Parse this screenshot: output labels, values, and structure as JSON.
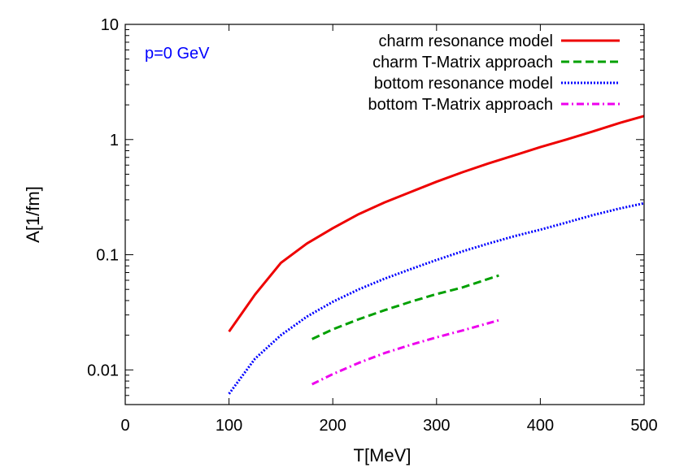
{
  "chart_data": {
    "type": "line",
    "title": "",
    "xlabel": "T[MeV]",
    "ylabel": "A[1/fm]",
    "xlim": [
      0,
      500
    ],
    "ylim": [
      0.005,
      10
    ],
    "yscale": "log",
    "grid": false,
    "legend_position": "top-right",
    "x_ticks": [
      0,
      100,
      200,
      300,
      400,
      500
    ],
    "x_tick_labels": [
      "0",
      "100",
      "200",
      "300",
      "400",
      "500"
    ],
    "y_ticks": [
      0.01,
      0.1,
      1,
      10
    ],
    "y_tick_labels": [
      "0.01",
      "0.1",
      "1",
      "10"
    ],
    "annotation": {
      "text": "p=0 GeV",
      "color": "#0000ff"
    },
    "series": [
      {
        "name": "charm resonance model",
        "color": "#ee0000",
        "style": "solid",
        "x": [
          100,
          125,
          150,
          175,
          200,
          225,
          250,
          275,
          300,
          325,
          350,
          375,
          400,
          425,
          450,
          475,
          500
        ],
        "y": [
          0.0215,
          0.045,
          0.085,
          0.125,
          0.17,
          0.225,
          0.285,
          0.35,
          0.43,
          0.52,
          0.62,
          0.73,
          0.86,
          1.0,
          1.17,
          1.38,
          1.6
        ]
      },
      {
        "name": "charm T-Matrix approach",
        "color": "#00a000",
        "style": "dashed",
        "x": [
          180,
          200,
          225,
          250,
          275,
          300,
          325,
          360
        ],
        "y": [
          0.0185,
          0.0225,
          0.0275,
          0.033,
          0.039,
          0.0455,
          0.052,
          0.066
        ]
      },
      {
        "name": "bottom resonance model",
        "color": "#0000ff",
        "style": "dotted",
        "x": [
          100,
          125,
          150,
          175,
          200,
          225,
          250,
          275,
          300,
          325,
          350,
          375,
          400,
          425,
          450,
          475,
          500
        ],
        "y": [
          0.0062,
          0.0125,
          0.02,
          0.029,
          0.039,
          0.05,
          0.062,
          0.075,
          0.09,
          0.107,
          0.125,
          0.145,
          0.165,
          0.19,
          0.22,
          0.25,
          0.28
        ]
      },
      {
        "name": "bottom T-Matrix approach",
        "color": "#ee00ee",
        "style": "dashdot",
        "x": [
          180,
          200,
          225,
          250,
          275,
          300,
          325,
          360
        ],
        "y": [
          0.0075,
          0.0092,
          0.0115,
          0.014,
          0.0165,
          0.0192,
          0.022,
          0.027
        ]
      }
    ]
  }
}
